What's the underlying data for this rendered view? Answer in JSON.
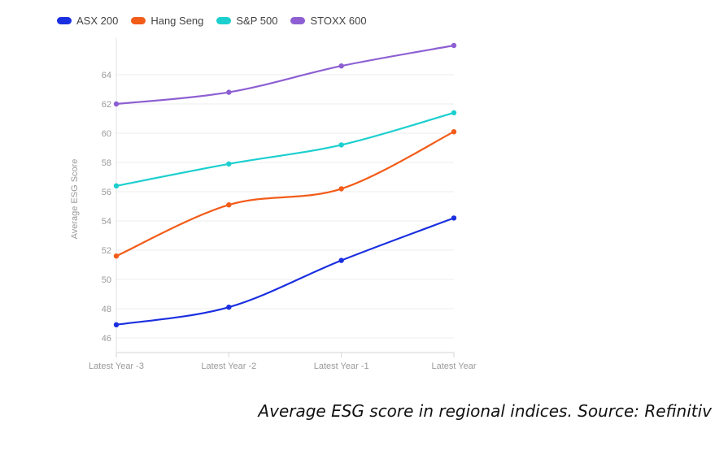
{
  "chart_data": {
    "type": "line",
    "title": "",
    "xlabel": "",
    "ylabel": "Average ESG Score",
    "categories": [
      "Latest Year -3",
      "Latest Year -2",
      "Latest Year -1",
      "Latest Year"
    ],
    "ylim": [
      45,
      66
    ],
    "yticks": [
      46,
      48,
      50,
      52,
      54,
      56,
      58,
      60,
      62,
      64
    ],
    "grid": true,
    "legend_position": "top-left",
    "series": [
      {
        "name": "ASX 200",
        "color": "#1a2fe0",
        "values": [
          46.9,
          48.1,
          51.3,
          54.2
        ]
      },
      {
        "name": "Hang Seng",
        "color": "#f25c19",
        "values": [
          51.6,
          55.1,
          56.2,
          60.1
        ]
      },
      {
        "name": "S&P 500",
        "color": "#1ccfcf",
        "values": [
          56.4,
          57.9,
          59.2,
          61.4
        ]
      },
      {
        "name": "STOXX 600",
        "color": "#8d5fd3",
        "values": [
          62.0,
          62.8,
          64.6,
          66.0
        ]
      }
    ]
  },
  "caption": "Average ESG score in regional indices. Source: Refinitiv"
}
